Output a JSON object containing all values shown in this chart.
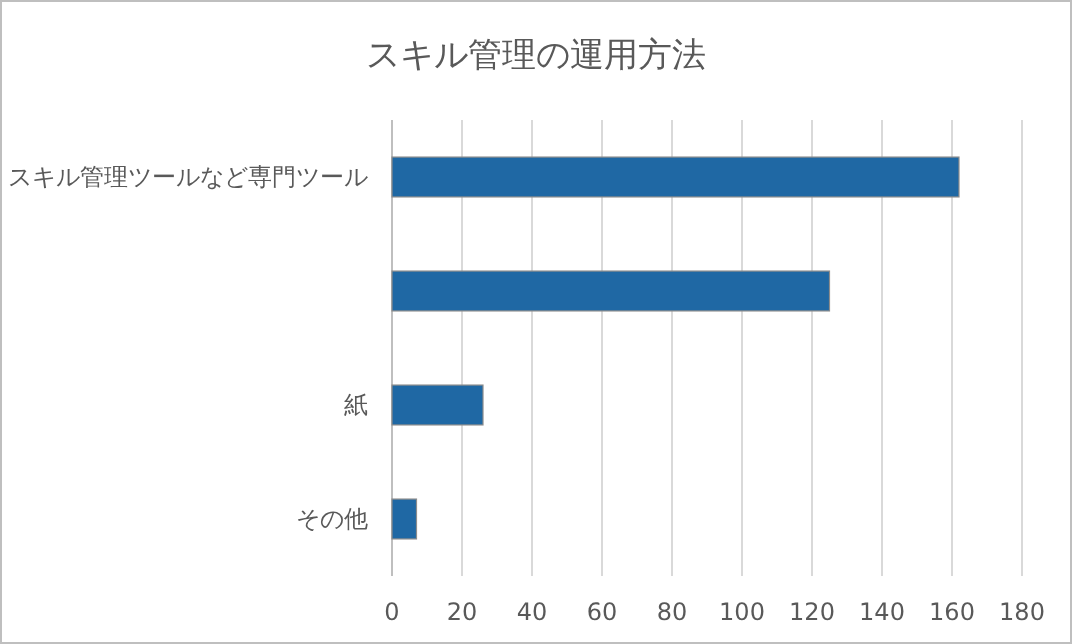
{
  "chart_data": {
    "type": "bar",
    "orientation": "horizontal",
    "title": "スキル管理の運用方法",
    "categories": [
      "スキル管理ツールなど専門ツール",
      null,
      "紙",
      "その他"
    ],
    "values": [
      162,
      125,
      26,
      7
    ],
    "color": "#1f68a4",
    "xlim": [
      0,
      180
    ],
    "xticks": [
      0,
      20,
      40,
      60,
      80,
      100,
      120,
      140,
      160,
      180
    ],
    "grid": "x"
  }
}
